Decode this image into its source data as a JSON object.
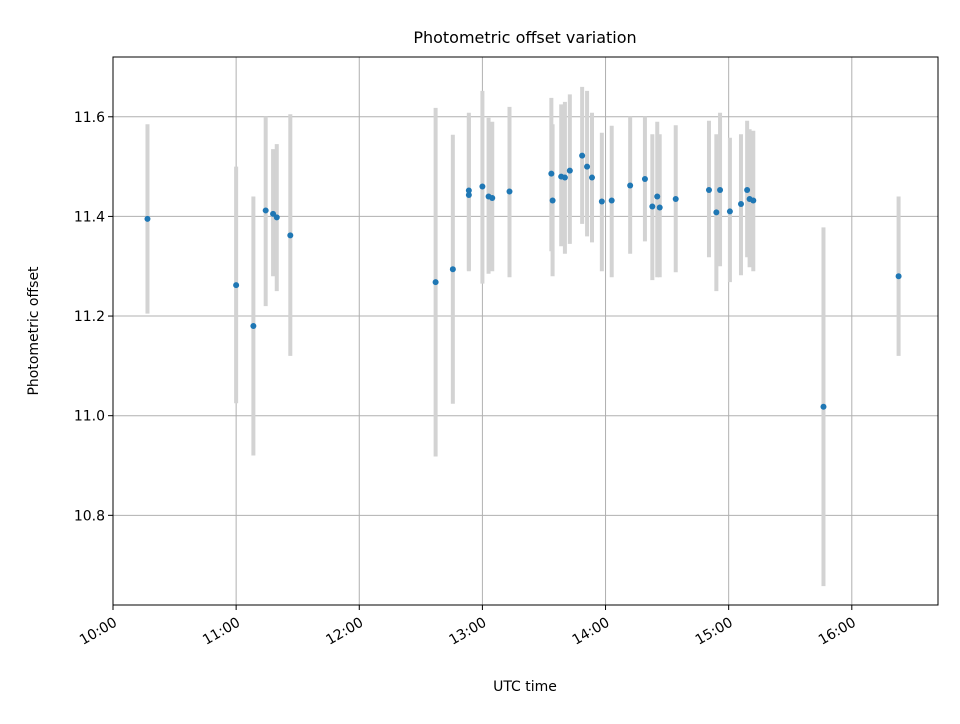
{
  "chart_data": {
    "type": "scatter",
    "title": "Photometric offset variation",
    "xlabel": "UTC time",
    "ylabel": "Photometric offset",
    "x_unit": "hours UTC",
    "xlim": [
      10.0,
      16.7
    ],
    "ylim": [
      10.62,
      11.72
    ],
    "x_ticks": [
      {
        "value": 10,
        "label": "10:00"
      },
      {
        "value": 11,
        "label": "11:00"
      },
      {
        "value": 12,
        "label": "12:00"
      },
      {
        "value": 13,
        "label": "13:00"
      },
      {
        "value": 14,
        "label": "14:00"
      },
      {
        "value": 15,
        "label": "15:00"
      },
      {
        "value": 16,
        "label": "16:00"
      }
    ],
    "y_ticks": [
      {
        "value": 10.8,
        "label": "10.8"
      },
      {
        "value": 11.0,
        "label": "11.0"
      },
      {
        "value": 11.2,
        "label": "11.2"
      },
      {
        "value": 11.4,
        "label": "11.4"
      },
      {
        "value": 11.6,
        "label": "11.6"
      }
    ],
    "grid": true,
    "colors": {
      "point": "#1f77b4",
      "error_bar": "#d3d3d3",
      "grid": "#b0b0b0"
    },
    "points": [
      {
        "x": 10.28,
        "y": 11.395,
        "lo": 11.205,
        "hi": 11.585
      },
      {
        "x": 11.0,
        "y": 11.262,
        "lo": 11.025,
        "hi": 11.5
      },
      {
        "x": 11.14,
        "y": 11.18,
        "lo": 10.92,
        "hi": 11.44
      },
      {
        "x": 11.24,
        "y": 11.412,
        "lo": 11.22,
        "hi": 11.6
      },
      {
        "x": 11.3,
        "y": 11.405,
        "lo": 11.28,
        "hi": 11.535
      },
      {
        "x": 11.33,
        "y": 11.398,
        "lo": 11.25,
        "hi": 11.545
      },
      {
        "x": 11.44,
        "y": 11.362,
        "lo": 11.12,
        "hi": 11.605
      },
      {
        "x": 12.62,
        "y": 11.268,
        "lo": 10.918,
        "hi": 11.618
      },
      {
        "x": 12.76,
        "y": 11.294,
        "lo": 11.024,
        "hi": 11.564
      },
      {
        "x": 12.89,
        "y": 11.452,
        "lo": 11.292,
        "hi": 11.608
      },
      {
        "x": 12.89,
        "y": 11.443,
        "lo": 11.29,
        "hi": 11.6
      },
      {
        "x": 13.0,
        "y": 11.46,
        "lo": 11.265,
        "hi": 11.652
      },
      {
        "x": 13.05,
        "y": 11.44,
        "lo": 11.285,
        "hi": 11.598
      },
      {
        "x": 13.08,
        "y": 11.437,
        "lo": 11.29,
        "hi": 11.59
      },
      {
        "x": 13.22,
        "y": 11.45,
        "lo": 11.278,
        "hi": 11.62
      },
      {
        "x": 13.56,
        "y": 11.486,
        "lo": 11.33,
        "hi": 11.638
      },
      {
        "x": 13.57,
        "y": 11.432,
        "lo": 11.28,
        "hi": 11.585
      },
      {
        "x": 13.64,
        "y": 11.48,
        "lo": 11.34,
        "hi": 11.625
      },
      {
        "x": 13.67,
        "y": 11.478,
        "lo": 11.325,
        "hi": 11.63
      },
      {
        "x": 13.71,
        "y": 11.492,
        "lo": 11.345,
        "hi": 11.645
      },
      {
        "x": 13.81,
        "y": 11.522,
        "lo": 11.385,
        "hi": 11.66
      },
      {
        "x": 13.85,
        "y": 11.5,
        "lo": 11.36,
        "hi": 11.652
      },
      {
        "x": 13.89,
        "y": 11.478,
        "lo": 11.348,
        "hi": 11.608
      },
      {
        "x": 13.97,
        "y": 11.43,
        "lo": 11.29,
        "hi": 11.568
      },
      {
        "x": 14.05,
        "y": 11.432,
        "lo": 11.278,
        "hi": 11.582
      },
      {
        "x": 14.2,
        "y": 11.462,
        "lo": 11.325,
        "hi": 11.6
      },
      {
        "x": 14.32,
        "y": 11.475,
        "lo": 11.35,
        "hi": 11.6
      },
      {
        "x": 14.38,
        "y": 11.42,
        "lo": 11.272,
        "hi": 11.565
      },
      {
        "x": 14.42,
        "y": 11.44,
        "lo": 11.278,
        "hi": 11.59
      },
      {
        "x": 14.44,
        "y": 11.418,
        "lo": 11.278,
        "hi": 11.565
      },
      {
        "x": 14.57,
        "y": 11.435,
        "lo": 11.288,
        "hi": 11.583
      },
      {
        "x": 14.84,
        "y": 11.453,
        "lo": 11.318,
        "hi": 11.592
      },
      {
        "x": 14.9,
        "y": 11.408,
        "lo": 11.25,
        "hi": 11.565
      },
      {
        "x": 14.93,
        "y": 11.453,
        "lo": 11.3,
        "hi": 11.608
      },
      {
        "x": 15.01,
        "y": 11.41,
        "lo": 11.268,
        "hi": 11.558
      },
      {
        "x": 15.1,
        "y": 11.425,
        "lo": 11.282,
        "hi": 11.565
      },
      {
        "x": 15.15,
        "y": 11.453,
        "lo": 11.318,
        "hi": 11.592
      },
      {
        "x": 15.17,
        "y": 11.435,
        "lo": 11.298,
        "hi": 11.575
      },
      {
        "x": 15.2,
        "y": 11.432,
        "lo": 11.29,
        "hi": 11.572
      },
      {
        "x": 15.77,
        "y": 11.018,
        "lo": 10.658,
        "hi": 11.378
      },
      {
        "x": 16.38,
        "y": 11.28,
        "lo": 11.12,
        "hi": 11.44
      }
    ]
  }
}
